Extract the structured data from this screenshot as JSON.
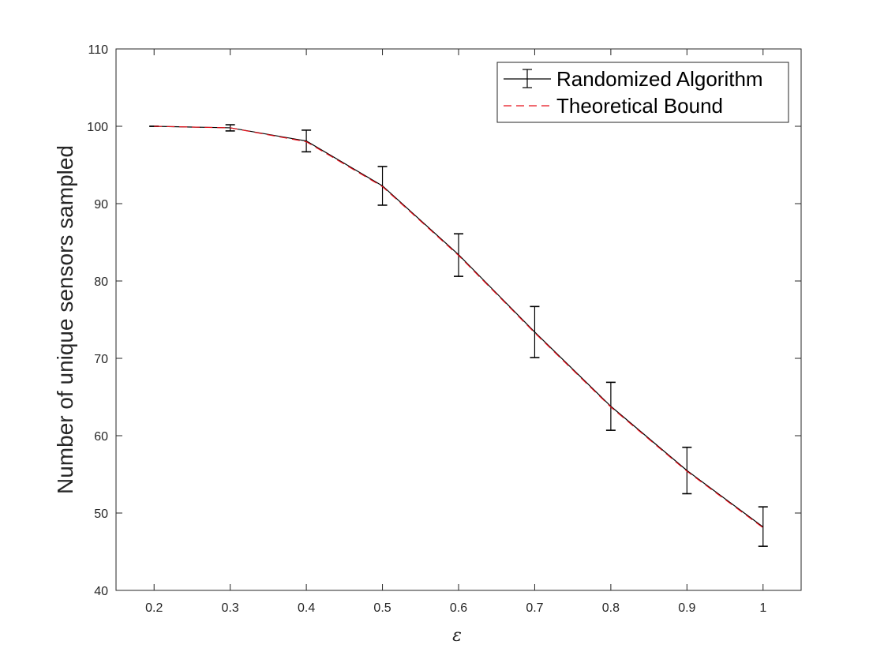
{
  "chart_data": {
    "type": "line",
    "xlabel": "ε",
    "ylabel": "Number of unique sensors sampled",
    "xlim": [
      0.15,
      1.05
    ],
    "ylim": [
      40,
      110
    ],
    "xticks": [
      "0.2",
      "0.3",
      "0.4",
      "0.5",
      "0.6",
      "0.7",
      "0.8",
      "0.9",
      "1"
    ],
    "yticks": [
      "40",
      "50",
      "60",
      "70",
      "80",
      "90",
      "100",
      "110"
    ],
    "x": [
      0.2,
      0.3,
      0.4,
      0.5,
      0.6,
      0.7,
      0.8,
      0.9,
      1.0
    ],
    "grid": false,
    "legend_position": "top-right",
    "series": [
      {
        "name": "Randomized Algorithm",
        "style": "solid-with-errorbars",
        "color": "#000000",
        "values": [
          100.0,
          99.8,
          98.1,
          92.3,
          83.4,
          73.4,
          63.8,
          55.5,
          48.2
        ],
        "error_low": [
          100.0,
          99.4,
          96.7,
          89.8,
          80.6,
          70.1,
          60.7,
          52.5,
          45.7
        ],
        "error_high": [
          100.0,
          100.2,
          99.5,
          94.8,
          86.1,
          76.7,
          66.9,
          58.5,
          50.8
        ]
      },
      {
        "name": "Theoretical Bound",
        "style": "dashed",
        "color": "#e8101a",
        "values": [
          100.0,
          99.8,
          98.0,
          92.2,
          83.3,
          73.3,
          63.7,
          55.4,
          48.1
        ]
      }
    ]
  }
}
